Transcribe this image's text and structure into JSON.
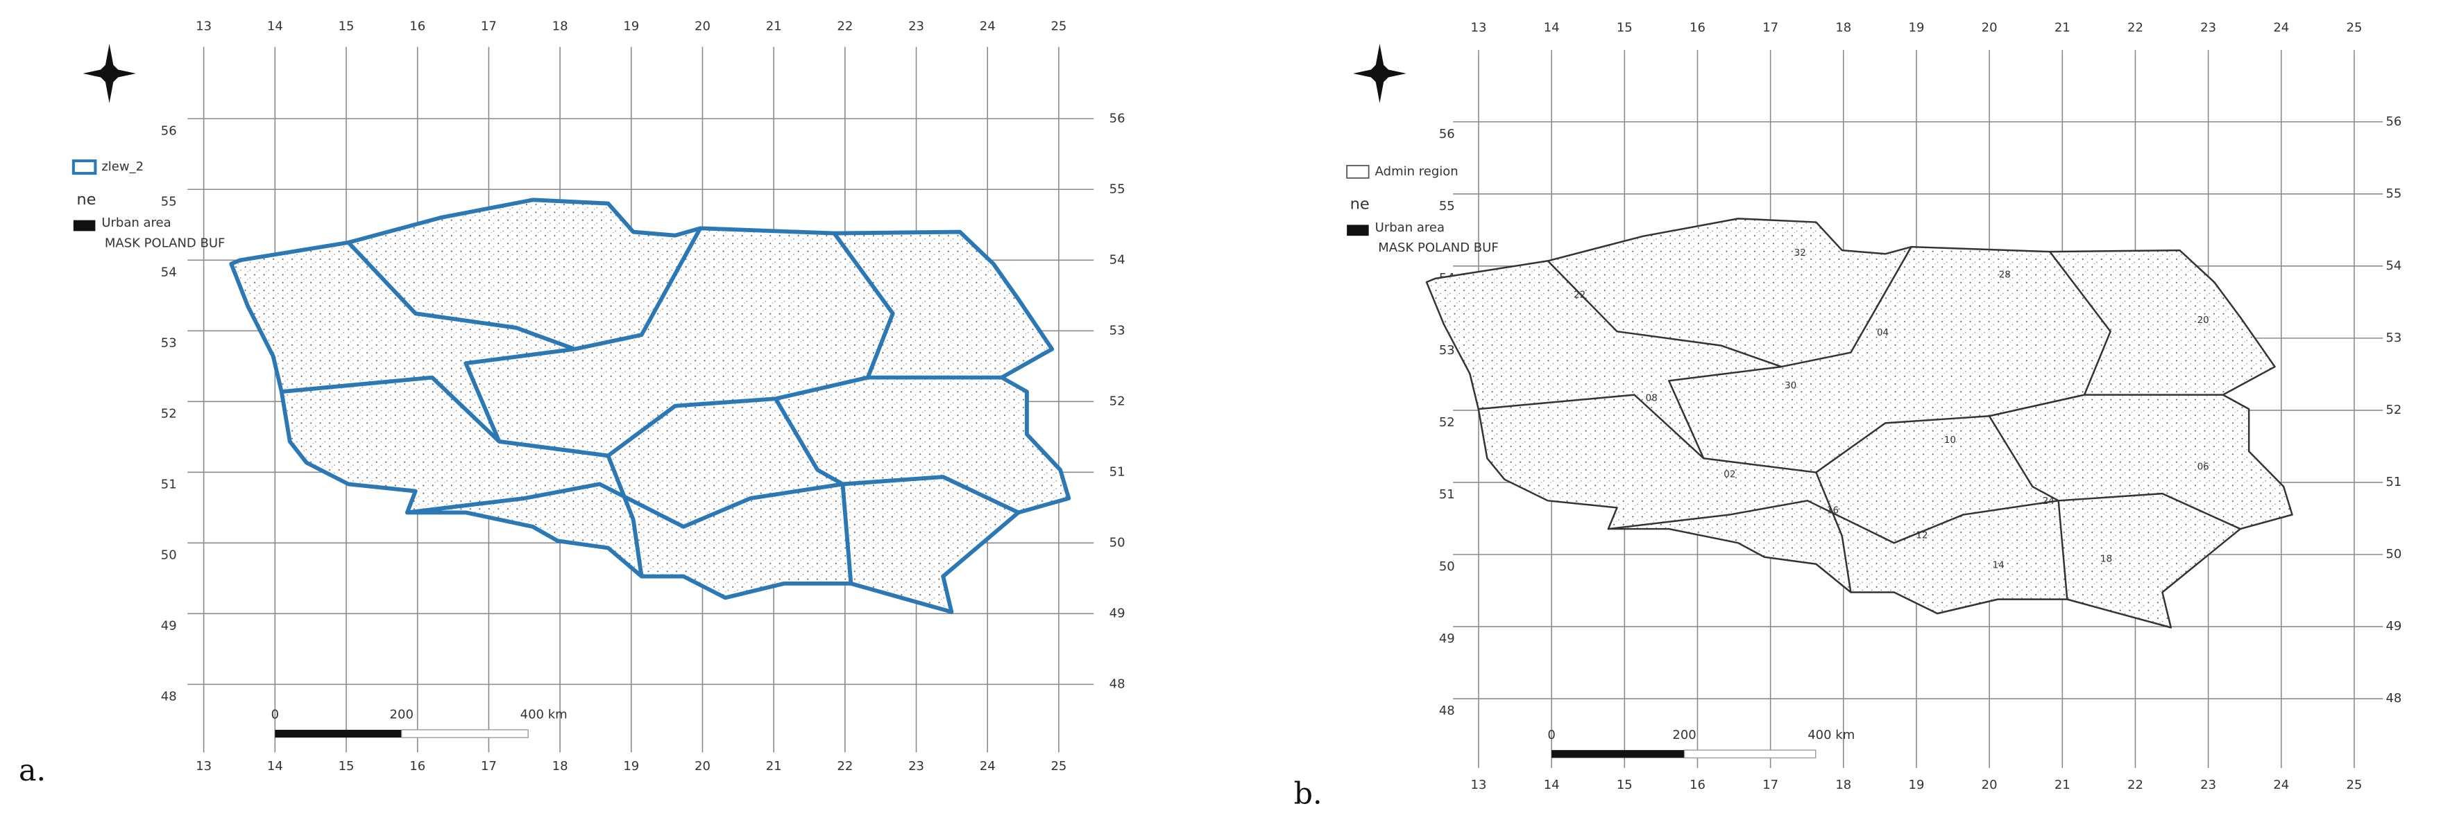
{
  "figure": {
    "panels": [
      {
        "label": "a.",
        "lon_ticks": [
          13,
          14,
          15,
          16,
          17,
          18,
          19,
          20,
          21,
          22,
          23,
          24,
          25
        ],
        "lat_ticks": [
          56,
          55,
          54,
          53,
          52,
          51,
          50,
          49,
          48
        ],
        "legend": {
          "layer": "zlew_2",
          "group": "ne",
          "urban": "Urban area",
          "mask": "MASK POLAND BUF"
        },
        "scale_bar": [
          "0",
          "200",
          "400 km"
        ]
      },
      {
        "label": "b.",
        "lon_ticks": [
          13,
          14,
          15,
          16,
          17,
          18,
          19,
          20,
          21,
          22,
          23,
          24,
          25
        ],
        "lat_ticks": [
          56,
          55,
          54,
          53,
          52,
          51,
          50,
          49,
          48
        ],
        "legend": {
          "layer": "Admin region",
          "group": "ne",
          "urban": "Urban area",
          "mask": "MASK POLAND BUF"
        },
        "scale_bar": [
          "0",
          "200",
          "400 km"
        ],
        "region_labels": [
          "32",
          "28",
          "22",
          "20",
          "04",
          "30",
          "08",
          "10",
          "06",
          "02",
          "24",
          "16",
          "12",
          "18",
          "14"
        ]
      }
    ]
  }
}
